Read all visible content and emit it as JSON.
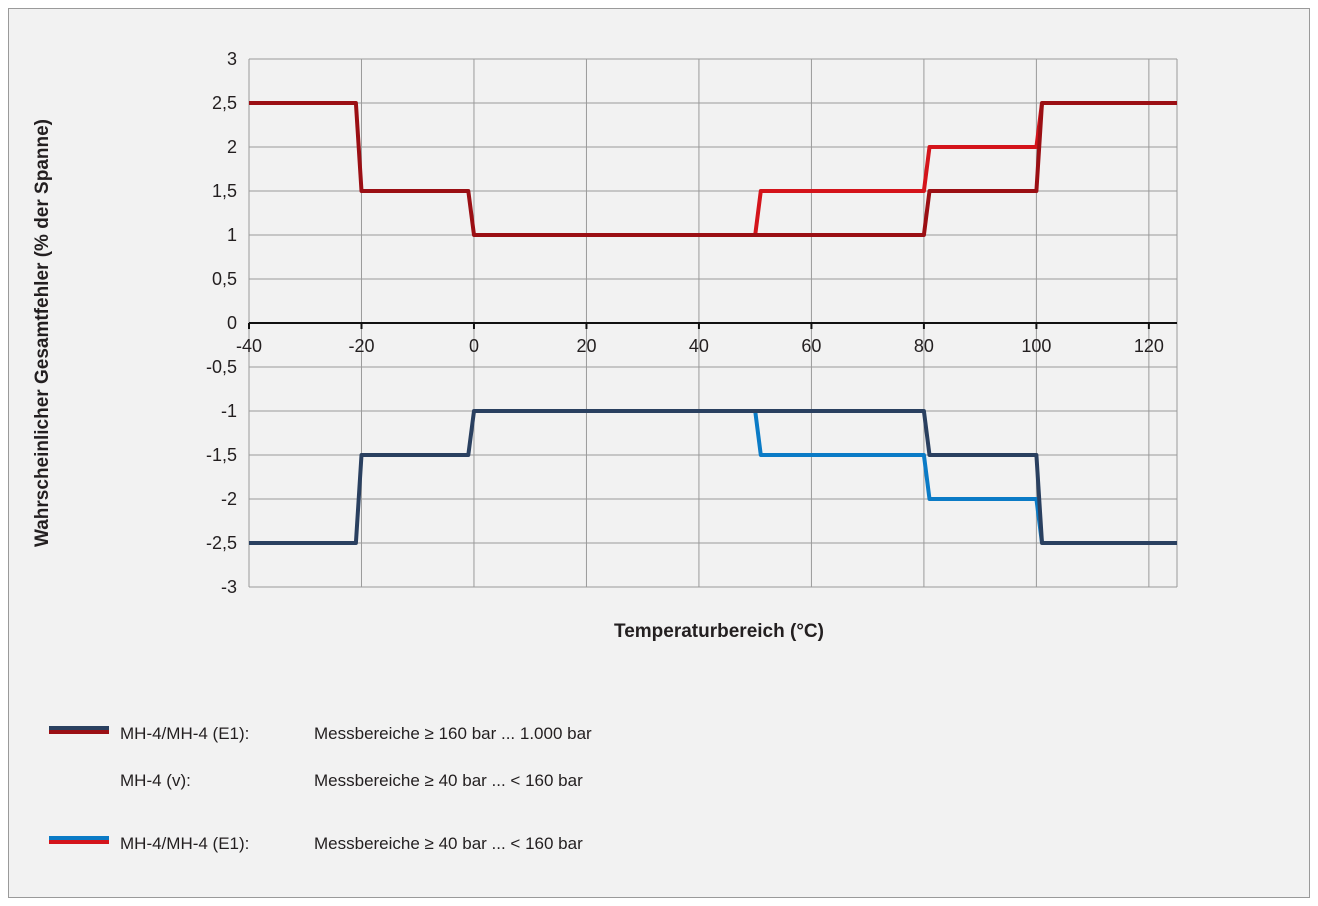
{
  "chart_data": {
    "type": "line",
    "xlabel": "Temperaturbereich (°C)",
    "ylabel": "Wahrscheinlicher Gesamtfehler (% der Spanne)",
    "xlim": [
      -40,
      125
    ],
    "ylim": [
      -3,
      3
    ],
    "x_ticks": [
      -40,
      -20,
      0,
      20,
      40,
      60,
      80,
      100,
      120
    ],
    "x_tick_labels": [
      "-40",
      "-20",
      "0",
      "20",
      "40",
      "60",
      "80",
      "100",
      "120"
    ],
    "y_ticks": [
      3,
      2.5,
      2,
      1.5,
      1,
      0.5,
      0,
      -0.5,
      -1,
      -1.5,
      -2,
      -2.5,
      -3
    ],
    "y_tick_labels": [
      "3",
      "2,5",
      "2",
      "1,5",
      "1",
      "0,5",
      "0",
      "-0,5",
      "-1",
      "-1,5",
      "-2",
      "-2,5",
      "-3"
    ],
    "grid": true,
    "series": [
      {
        "color": "#0b7bc6",
        "points": [
          [
            50,
            -1
          ],
          [
            51,
            -1.5
          ],
          [
            80,
            -1.5
          ],
          [
            81,
            -2
          ],
          [
            100,
            -2
          ],
          [
            101,
            -2.5
          ]
        ]
      },
      {
        "color": "#d4141b",
        "points": [
          [
            50,
            1
          ],
          [
            51,
            1.5
          ],
          [
            80,
            1.5
          ],
          [
            81,
            2
          ],
          [
            100,
            2
          ],
          [
            101,
            2.5
          ]
        ]
      },
      {
        "color": "#2a4060",
        "points": [
          [
            -40,
            -2.5
          ],
          [
            -21,
            -2.5
          ],
          [
            -20,
            -1.5
          ],
          [
            -1,
            -1.5
          ],
          [
            0,
            -1
          ],
          [
            80,
            -1
          ],
          [
            81,
            -1.5
          ],
          [
            100,
            -1.5
          ],
          [
            101,
            -2.5
          ],
          [
            125,
            -2.5
          ]
        ]
      },
      {
        "color": "#9b0f14",
        "points": [
          [
            -40,
            2.5
          ],
          [
            -21,
            2.5
          ],
          [
            -20,
            1.5
          ],
          [
            -1,
            1.5
          ],
          [
            0,
            1
          ],
          [
            80,
            1
          ],
          [
            81,
            1.5
          ],
          [
            100,
            1.5
          ],
          [
            101,
            2.5
          ],
          [
            125,
            2.5
          ]
        ]
      }
    ]
  },
  "legend": {
    "rows": [
      {
        "label": "MH-4/MH-4 (E1):",
        "range": "Messbereiche ≥ 160 bar ... 1.000 bar",
        "colors": [
          "#2a4060",
          "#9b0f14"
        ]
      },
      {
        "label": "MH-4 (v):",
        "range": "Messbereiche ≥ 40 bar ... < 160 bar",
        "colors": []
      },
      {
        "label": "MH-4/MH-4 (E1):",
        "range": "Messbereiche ≥ 40 bar ... < 160 bar",
        "colors": [
          "#0b7bc6",
          "#d4141b"
        ]
      }
    ]
  }
}
